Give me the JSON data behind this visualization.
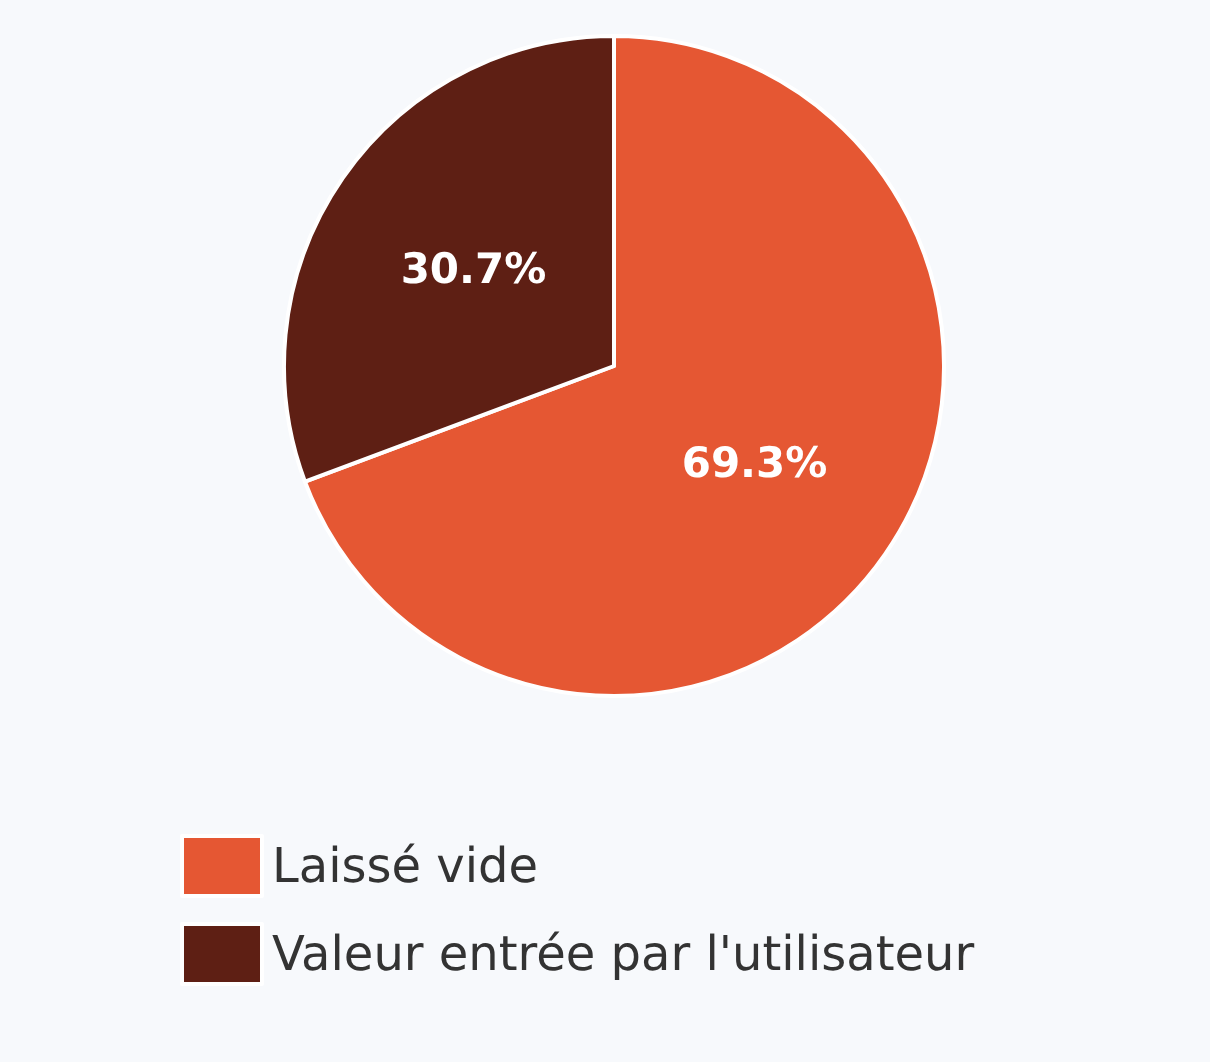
{
  "chart_data": {
    "type": "pie",
    "categories": [
      "Laissé vide",
      "Valeur entrée par l'utilisateur"
    ],
    "values": [
      69.3,
      30.7
    ],
    "colors": [
      "#e55733",
      "#5e1f14"
    ],
    "value_labels": [
      "69.3%",
      "30.7%"
    ],
    "legend": "bottom"
  }
}
